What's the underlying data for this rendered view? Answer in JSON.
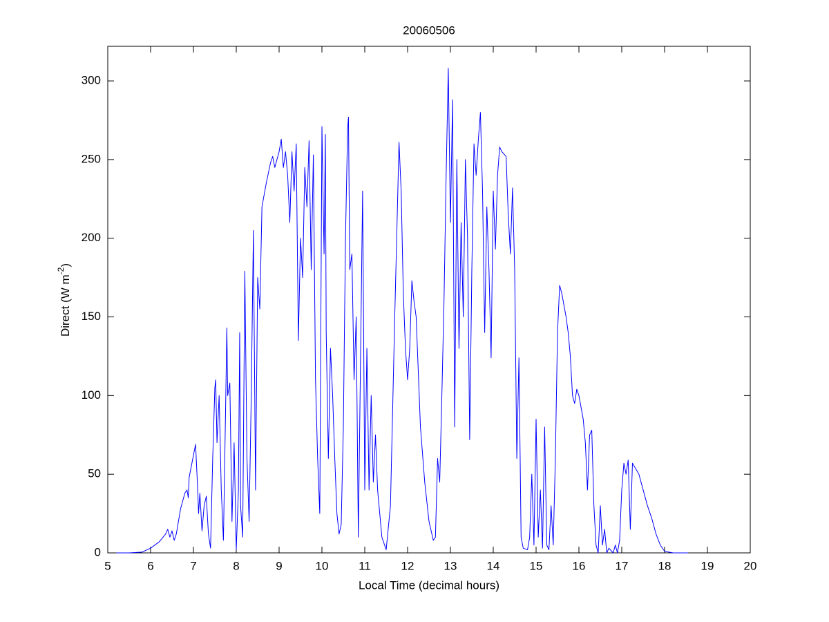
{
  "chart_data": {
    "type": "line",
    "title": "20060506",
    "x_label": "Local Time (decimal hours)",
    "y_label_parts": [
      "Direct (W m",
      "-2",
      ")"
    ],
    "xlim": [
      5,
      20
    ],
    "xticks": [
      5,
      6,
      7,
      8,
      9,
      10,
      11,
      12,
      13,
      14,
      15,
      16,
      17,
      18,
      19,
      20
    ],
    "ylim": [
      0,
      322
    ],
    "yticks": [
      0,
      50,
      100,
      150,
      200,
      250,
      300
    ],
    "grid": false,
    "series": [
      {
        "color": "#0000ff",
        "x": [
          5.2,
          5.5,
          5.8,
          6.0,
          6.2,
          6.35,
          6.4,
          6.45,
          6.5,
          6.55,
          6.6,
          6.65,
          6.7,
          6.8,
          6.85,
          6.88,
          6.9,
          7.0,
          7.05,
          7.1,
          7.12,
          7.15,
          7.2,
          7.25,
          7.3,
          7.35,
          7.4,
          7.45,
          7.5,
          7.52,
          7.55,
          7.6,
          7.65,
          7.7,
          7.75,
          7.78,
          7.8,
          7.85,
          7.9,
          7.95,
          8.0,
          8.05,
          8.08,
          8.1,
          8.15,
          8.2,
          8.25,
          8.3,
          8.35,
          8.4,
          8.45,
          8.5,
          8.55,
          8.6,
          8.7,
          8.8,
          8.85,
          8.9,
          9.0,
          9.05,
          9.1,
          9.15,
          9.2,
          9.25,
          9.3,
          9.35,
          9.4,
          9.45,
          9.5,
          9.55,
          9.6,
          9.65,
          9.7,
          9.75,
          9.8,
          9.85,
          9.9,
          9.95,
          10.0,
          10.05,
          10.08,
          10.1,
          10.15,
          10.2,
          10.25,
          10.3,
          10.35,
          10.4,
          10.45,
          10.5,
          10.55,
          10.6,
          10.62,
          10.65,
          10.7,
          10.75,
          10.8,
          10.85,
          10.9,
          10.95,
          11.0,
          11.05,
          11.1,
          11.15,
          11.2,
          11.25,
          11.3,
          11.4,
          11.5,
          11.6,
          11.7,
          11.8,
          11.85,
          11.9,
          11.95,
          12.0,
          12.05,
          12.1,
          12.15,
          12.2,
          12.3,
          12.4,
          12.5,
          12.6,
          12.65,
          12.7,
          12.75,
          12.8,
          12.85,
          12.9,
          12.95,
          13.0,
          13.05,
          13.1,
          13.15,
          13.2,
          13.25,
          13.3,
          13.35,
          13.4,
          13.45,
          13.5,
          13.55,
          13.6,
          13.65,
          13.7,
          13.75,
          13.8,
          13.85,
          13.9,
          13.95,
          14.0,
          14.05,
          14.1,
          14.15,
          14.2,
          14.3,
          14.35,
          14.4,
          14.45,
          14.5,
          14.55,
          14.6,
          14.65,
          14.7,
          14.8,
          14.85,
          14.9,
          14.95,
          15.0,
          15.05,
          15.1,
          15.15,
          15.2,
          15.25,
          15.3,
          15.35,
          15.4,
          15.45,
          15.5,
          15.55,
          15.6,
          15.7,
          15.75,
          15.8,
          15.85,
          15.9,
          15.95,
          16.0,
          16.1,
          16.15,
          16.2,
          16.25,
          16.3,
          16.35,
          16.4,
          16.45,
          16.5,
          16.55,
          16.6,
          16.65,
          16.7,
          16.8,
          16.85,
          16.9,
          16.95,
          17.0,
          17.05,
          17.1,
          17.15,
          17.2,
          17.25,
          17.4,
          17.5,
          17.6,
          17.7,
          17.8,
          17.9,
          18.0,
          18.2,
          18.55
        ],
        "values": [
          0,
          0,
          0.5,
          3,
          7,
          12,
          15,
          10,
          14,
          8,
          12,
          20,
          28,
          38,
          40,
          35,
          48,
          62,
          69,
          40,
          25,
          38,
          14,
          30,
          36,
          12,
          3,
          60,
          105,
          110,
          70,
          100,
          40,
          8,
          90,
          143,
          100,
          108,
          20,
          70,
          2,
          40,
          140,
          30,
          10,
          179,
          60,
          20,
          100,
          205,
          40,
          175,
          155,
          220,
          235,
          248,
          252,
          245,
          255,
          263,
          245,
          255,
          240,
          210,
          255,
          230,
          260,
          135,
          200,
          175,
          245,
          220,
          262,
          180,
          253,
          110,
          60,
          25,
          271,
          190,
          266,
          140,
          60,
          130,
          100,
          60,
          25,
          12,
          18,
          80,
          200,
          270,
          277,
          180,
          190,
          110,
          150,
          10,
          120,
          230,
          40,
          130,
          40,
          100,
          45,
          75,
          40,
          10,
          2,
          30,
          150,
          261,
          230,
          165,
          130,
          110,
          130,
          173,
          160,
          150,
          80,
          45,
          20,
          8,
          10,
          60,
          45,
          100,
          160,
          240,
          308,
          210,
          288,
          80,
          250,
          130,
          210,
          150,
          250,
          200,
          72,
          180,
          260,
          240,
          262,
          280,
          230,
          140,
          220,
          180,
          124,
          230,
          193,
          240,
          258,
          255,
          252,
          215,
          190,
          232,
          180,
          60,
          124,
          10,
          3,
          2,
          10,
          50,
          5,
          85,
          10,
          40,
          3,
          80,
          5,
          2,
          30,
          5,
          60,
          140,
          170,
          165,
          150,
          140,
          125,
          100,
          95,
          104,
          100,
          85,
          70,
          40,
          75,
          78,
          30,
          5,
          0,
          30,
          5,
          15,
          0,
          3,
          0,
          5,
          0,
          8,
          40,
          57,
          50,
          59,
          15,
          57,
          50,
          40,
          30,
          22,
          12,
          5,
          1,
          0,
          0
        ]
      }
    ]
  }
}
